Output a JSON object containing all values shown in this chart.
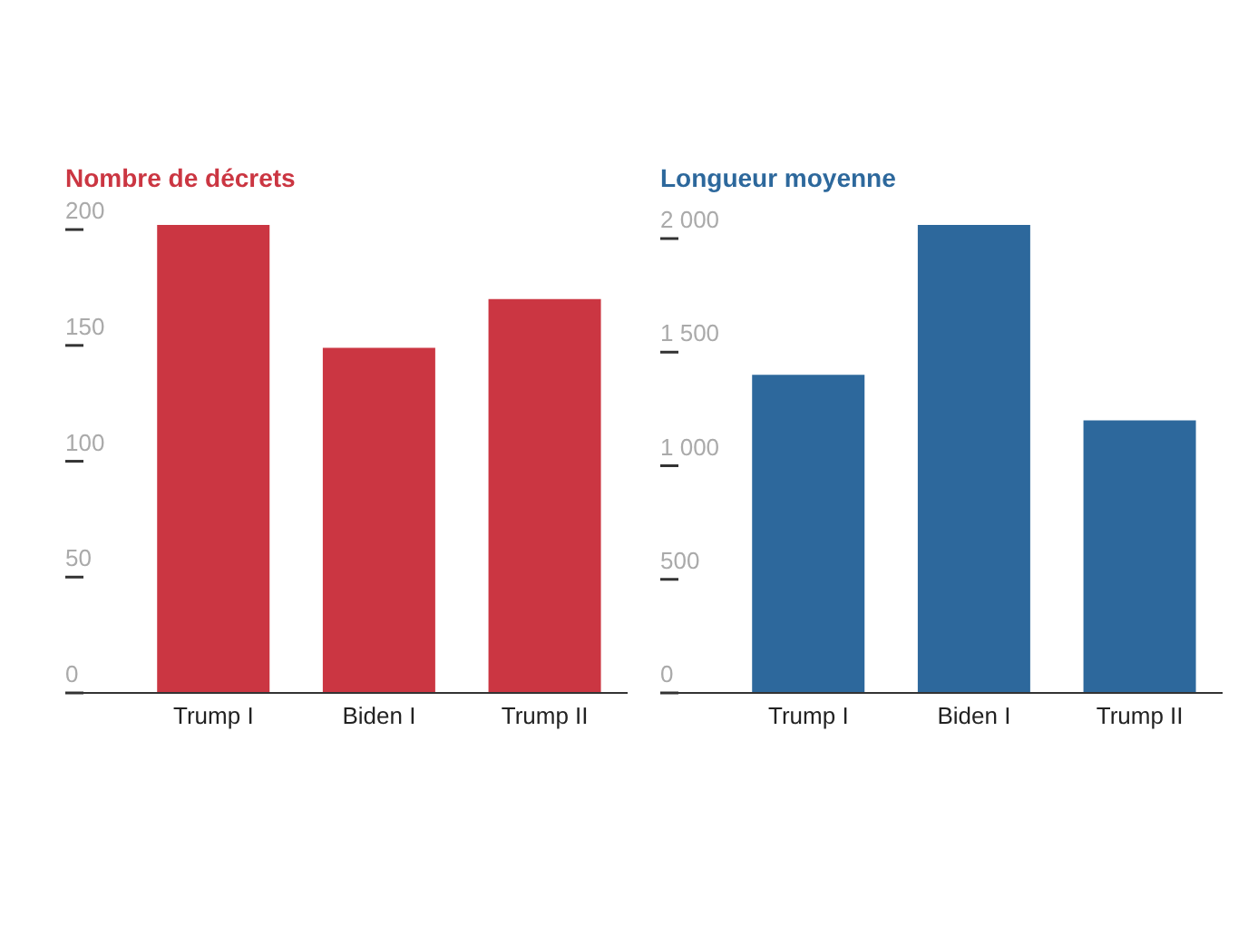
{
  "chart_data": [
    {
      "type": "bar",
      "title": "Nombre de décrets",
      "categories": [
        "Trump I",
        "Biden I",
        "Trump II"
      ],
      "values": [
        202,
        149,
        170
      ],
      "color": "#cb3642",
      "ylim": [
        0,
        202
      ],
      "yticks": [
        0,
        50,
        100,
        150,
        200
      ],
      "grid": false
    },
    {
      "type": "bar",
      "title": "Longueur moyenne",
      "categories": [
        "Trump I",
        "Biden I",
        "Trump II"
      ],
      "values": [
        1400,
        2060,
        1200
      ],
      "color": "#2d689c",
      "ylim": [
        0,
        2060
      ],
      "yticks": [
        0,
        {
          "value": 500,
          "label": "500"
        },
        {
          "value": 1000,
          "label": "1 000"
        },
        {
          "value": 1500,
          "label": "1 500"
        },
        {
          "value": 2000,
          "label": "2 000"
        }
      ],
      "grid": false
    }
  ]
}
